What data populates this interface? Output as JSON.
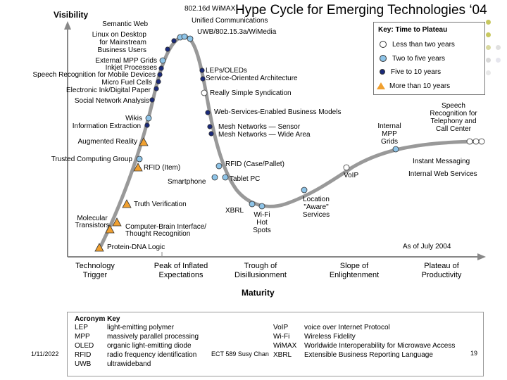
{
  "title": "Hype Cycle for Emerging Technologies ‘04",
  "chart_data": {
    "type": "hype-cycle",
    "y_axis_label": "Visibility",
    "x_axis_label": "Maturity",
    "phases": [
      {
        "name": "Technology Trigger",
        "lines": [
          "Technology",
          "Trigger"
        ]
      },
      {
        "name": "Peak of Inflated Expectations",
        "lines": [
          "Peak of Inflated",
          "Expectations"
        ]
      },
      {
        "name": "Trough of Disillusionment",
        "lines": [
          "Trough of",
          "Disillusionment"
        ]
      },
      {
        "name": "Slope of Enlightenment",
        "lines": [
          "Slope of",
          "Enlightenment"
        ]
      },
      {
        "name": "Plateau of Productivity",
        "lines": [
          "Plateau of",
          "Productivity"
        ]
      }
    ],
    "as_of": "As of July 2004",
    "legend": {
      "title": "Key: Time to Plateau",
      "entries": [
        {
          "label": "Less than two years",
          "color": "#ffffff"
        },
        {
          "label": "Two to five years",
          "color": "#8ec4e8"
        },
        {
          "label": "Five to 10 years",
          "color": "#1a2a7a"
        },
        {
          "label": "More than 10 years",
          "color": "#f0a030"
        }
      ]
    },
    "technologies": [
      {
        "label": "Protein-DNA Logic",
        "category": "more-than-10"
      },
      {
        "label": "Computer-Brain Interface/ Thought Recognition",
        "category": "more-than-10"
      },
      {
        "label": "Molecular Transistors",
        "category": "more-than-10"
      },
      {
        "label": "Truth Verification",
        "category": "more-than-10"
      },
      {
        "label": "RFID (Item)",
        "category": "more-than-10"
      },
      {
        "label": "Trusted Computing Group",
        "category": "two-to-five"
      },
      {
        "label": "Augmented Reality",
        "category": "more-than-10"
      },
      {
        "label": "Wikis",
        "category": "two-to-five"
      },
      {
        "label": "Information Extraction",
        "category": "five-to-ten"
      },
      {
        "label": "Social Network Analysis",
        "category": "five-to-ten"
      },
      {
        "label": "Electronic Ink/Digital Paper",
        "category": "five-to-ten"
      },
      {
        "label": "Micro Fuel Cells",
        "category": "five-to-ten"
      },
      {
        "label": "Speech Recognition for Mobile Devices",
        "category": "five-to-ten"
      },
      {
        "label": "Inkjet Processes",
        "category": "five-to-ten"
      },
      {
        "label": "External MPP Grids",
        "category": "two-to-five"
      },
      {
        "label": "Linux on Desktop for Mainstream Business Users",
        "category": "five-to-ten"
      },
      {
        "label": "Semantic Web",
        "category": "five-to-ten"
      },
      {
        "label": "802.16d WiMAX",
        "category": "two-to-five"
      },
      {
        "label": "Unified Communications",
        "category": "two-to-five"
      },
      {
        "label": "UWB/802.15.3a/WiMedia",
        "category": "two-to-five"
      },
      {
        "label": "LEPs/OLEDs",
        "category": "five-to-ten"
      },
      {
        "label": "Service-Oriented Architecture",
        "category": "five-to-ten"
      },
      {
        "label": "Really Simple Syndication",
        "category": "less-than-2"
      },
      {
        "label": "Web-Services-Enabled Business Models",
        "category": "five-to-ten"
      },
      {
        "label": "Mesh Networks — Sensor",
        "category": "five-to-ten"
      },
      {
        "label": "Mesh Networks — Wide Area",
        "category": "five-to-ten"
      },
      {
        "label": "RFID (Case/Pallet)",
        "category": "two-to-five"
      },
      {
        "label": "Tablet PC",
        "category": "two-to-five"
      },
      {
        "label": "Smartphone",
        "category": "two-to-five"
      },
      {
        "label": "XBRL",
        "category": "two-to-five"
      },
      {
        "label": "Wi-Fi Hot Spots",
        "category": "two-to-five"
      },
      {
        "label": "Location \"Aware\" Services",
        "category": "two-to-five"
      },
      {
        "label": "VoIP",
        "category": "less-than-2"
      },
      {
        "label": "Internal MPP Grids",
        "category": "two-to-five"
      },
      {
        "label": "Speech Recognition for Telephony and Call Center",
        "category": "less-than-2"
      },
      {
        "label": "Instant Messaging",
        "category": "less-than-2"
      },
      {
        "label": "Internal Web Services",
        "category": "less-than-2"
      }
    ]
  },
  "labels": {
    "semantic_web": "Semantic Web",
    "wimax": "802.16d WiMAX",
    "unified": "Unified Communications",
    "uwb": "UWB/802.15.3a/WiMedia",
    "linux": [
      "Linux on Desktop",
      "for Mainstream",
      "Business Users"
    ],
    "ext_mpp": "External MPP Grids",
    "inkjet": "Inkjet Processes",
    "speech_mobile": "Speech Recognition for Mobile Devices",
    "micro_fuel": "Micro Fuel Cells",
    "eink": "Electronic Ink/Digital Paper",
    "sna": "Social Network Analysis",
    "wikis": "Wikis",
    "info_extract": "Information Extraction",
    "aug_reality": "Augmented Reality",
    "tcg": "Trusted Computing Group",
    "rfid_item": "RFID (Item)",
    "truth": "Truth Verification",
    "molecular": [
      "Molecular",
      "Transistors"
    ],
    "cbi": [
      "Computer-Brain Interface/",
      "Thought Recognition"
    ],
    "protein": "Protein-DNA Logic",
    "leps": "LEPs/OLEDs",
    "soa": "Service-Oriented Architecture",
    "rss": "Really Simple Syndication",
    "wsebm": "Web-Services-Enabled Business Models",
    "mesh_sensor": "Mesh Networks — Sensor",
    "mesh_wide": "Mesh Networks — Wide Area",
    "rfid_case": "RFID (Case/Pallet)",
    "tablet": "Tablet PC",
    "smartphone": "Smartphone",
    "xbrl": "XBRL",
    "wifi": [
      "Wi-Fi",
      "Hot",
      "Spots"
    ],
    "location": [
      "Location",
      "\"Aware\"",
      "Services"
    ],
    "voip": "VoIP",
    "int_mpp": [
      "Internal",
      "MPP",
      "Grids"
    ],
    "speech_tel": [
      "Speech",
      "Recognition for",
      "Telephony and",
      "Call Center"
    ],
    "im": "Instant Messaging",
    "iws": "Internal Web Services"
  },
  "acronym_key": {
    "title": "Acronym Key",
    "left": [
      {
        "abbr": "LEP",
        "meaning": "light-emitting polymer"
      },
      {
        "abbr": "MPP",
        "meaning": "massively parallel processing"
      },
      {
        "abbr": "OLED",
        "meaning": "organic light-emitting diode"
      },
      {
        "abbr": "RFID",
        "meaning": "radio frequency identification"
      },
      {
        "abbr": "UWB",
        "meaning": "ultrawideband"
      }
    ],
    "right": [
      {
        "abbr": "VoIP",
        "meaning": "voice over Internet Protocol"
      },
      {
        "abbr": "Wi-Fi",
        "meaning": "Wireless Fidelity"
      },
      {
        "abbr": "WiMAX",
        "meaning": "Worldwide Interoperability for Microwave Access"
      },
      {
        "abbr": "XBRL",
        "meaning": "Extensible Business Reporting Language"
      }
    ]
  },
  "footer": {
    "date": "1/11/2022",
    "text": "ECT 589 Susy Chan",
    "page": "19"
  }
}
